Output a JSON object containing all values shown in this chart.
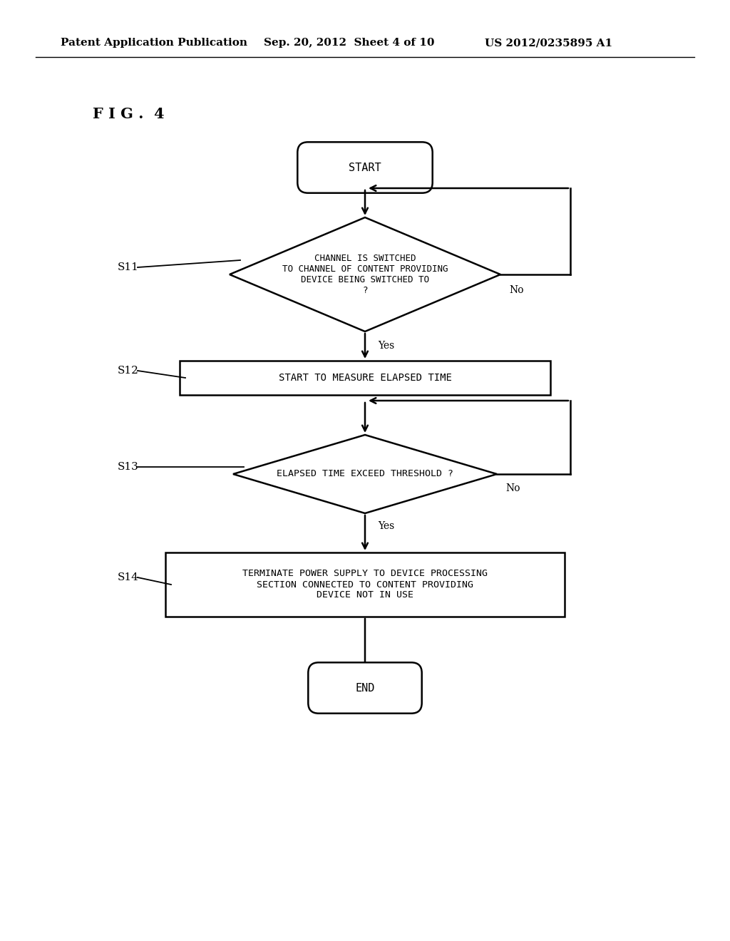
{
  "bg_color": "#ffffff",
  "header_left": "Patent Application Publication",
  "header_mid": "Sep. 20, 2012  Sheet 4 of 10",
  "header_right": "US 2012/0235895 A1",
  "fig_label": "F I G .  4",
  "line_color": "#000000",
  "text_color": "#000000",
  "start_text": "START",
  "end_text": "END",
  "s11_text": "CHANNEL IS SWITCHED\nTO CHANNEL OF CONTENT PROVIDING\nDEVICE BEING SWITCHED TO\n?",
  "s12_text": "START TO MEASURE ELAPSED TIME",
  "s13_text": "ELAPSED TIME EXCEED THRESHOLD ?",
  "s14_text": "TERMINATE POWER SUPPLY TO DEVICE PROCESSING\nSECTION CONNECTED TO CONTENT PROVIDING\nDEVICE NOT IN USE",
  "yes_label": "Yes",
  "no_label": "No",
  "step_labels": [
    "S11",
    "S12",
    "S13",
    "S14"
  ]
}
